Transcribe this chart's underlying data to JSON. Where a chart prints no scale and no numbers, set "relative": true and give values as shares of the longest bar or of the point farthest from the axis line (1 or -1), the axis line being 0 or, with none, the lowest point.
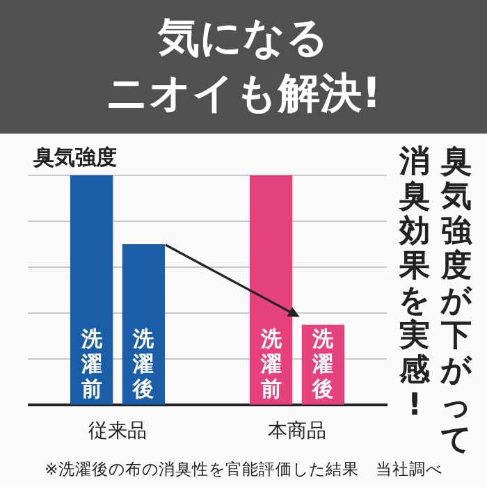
{
  "chart_data": {
    "type": "bar",
    "title": "気になる",
    "subtitle": "ニオイも解決!",
    "ylabel": "臭気強度",
    "relative": true,
    "grid": "y",
    "legend": false,
    "categories": [
      "従来品",
      "本商品"
    ],
    "series": [
      {
        "name": "洗濯前",
        "colors": [
          "#1a5ea8",
          "#e5427f"
        ],
        "values": [
          1,
          1
        ]
      },
      {
        "name": "洗濯後",
        "colors": [
          "#1a5ea8",
          "#e5427f"
        ],
        "values": [
          0.7,
          0.35
        ]
      }
    ],
    "annotations": [
      "臭気強度が下がって",
      "消臭効果を実感!",
      "※洗濯後の布の消臭性を官能評価した結果　当社調べ"
    ]
  }
}
